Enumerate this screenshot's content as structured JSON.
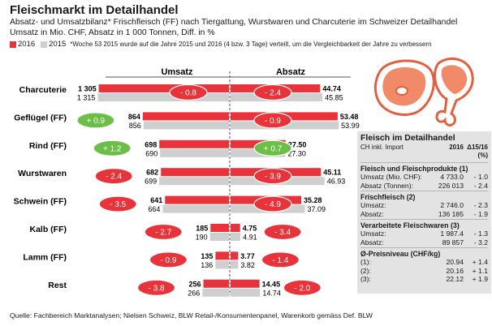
{
  "header": {
    "title": "Fleischmarkt im Detailhandel",
    "subtitle1": "Absatz- und Umsatzbilanz* Frischfleisch (FF) nach Tiergattung, Wurstwaren und Charcuterie im Schweizer Detailhandel",
    "subtitle2": "Umsatz in Mio. CHF, Absatz in 1 000 Tonnen, Diff. in %"
  },
  "legend": {
    "label_2016": "2016",
    "label_2015": "2015",
    "note": "*Woche 53 2015 wurde auf die Jahre 2015 und 2016 (4 bzw. 3 Tage) verteilt, um die Vergleichbarkeit der Jahre zu verbessern",
    "color_2016": "#e8333a",
    "color_2015": "#cfcfcf",
    "color_negative": "#e8333a",
    "color_positive": "#6bbf47"
  },
  "chart_data": {
    "type": "bar",
    "layout": "butterfly",
    "left_header": "Umsatz",
    "right_header": "Absatz",
    "categories": [
      "Charcuterie",
      "Geflügel (FF)",
      "Rind (FF)",
      "Wurstwaren",
      "Schwein (FF)",
      "Kalb (FF)",
      "Lamm (FF)",
      "Rest"
    ],
    "umsatz": {
      "2016": [
        1305,
        864,
        698,
        682,
        641,
        185,
        135,
        256
      ],
      "2015": [
        1315,
        856,
        690,
        699,
        664,
        190,
        136,
        266
      ],
      "labels_2016": [
        "1 305",
        "864",
        "698",
        "682",
        "641",
        "185",
        "135",
        "256"
      ],
      "labels_2015": [
        "1 315",
        "856",
        "690",
        "699",
        "664",
        "190",
        "136",
        "266"
      ],
      "diff": [
        "- 0.8",
        "+ 0.9",
        "+ 1.2",
        "- 2.4",
        "- 3.5",
        "- 2.7",
        "- 0.9",
        "- 3.8"
      ],
      "diff_values": [
        -0.8,
        0.9,
        1.2,
        -2.4,
        -3.5,
        -2.7,
        -0.9,
        -3.8
      ]
    },
    "absatz": {
      "2016": [
        44.74,
        53.48,
        27.5,
        45.11,
        35.28,
        4.75,
        3.77,
        14.45
      ],
      "2015": [
        45.85,
        53.99,
        27.3,
        46.93,
        37.09,
        4.91,
        3.82,
        14.74
      ],
      "labels_2016": [
        "44.74",
        "53.48",
        "27.50",
        "45.11",
        "35.28",
        "4.75",
        "3.77",
        "14.45"
      ],
      "labels_2015": [
        "45.85",
        "53.99",
        "27.30",
        "46.93",
        "37.09",
        "4.91",
        "3.82",
        "14.74"
      ],
      "diff": [
        "- 2.4",
        "- 0.9",
        "+ 0.7",
        "- 3.9",
        "- 4.9",
        "- 3.4",
        "- 1.4",
        "- 2.0"
      ],
      "diff_values": [
        -2.4,
        -0.9,
        0.7,
        -3.9,
        -4.9,
        -3.4,
        -1.4,
        -2.0
      ]
    }
  },
  "infotable": {
    "title": "Fleisch im Detailhandel",
    "col1": "CH inkl. Import",
    "col2": "2016",
    "col3": "Δ15/16 (%)",
    "sections": [
      {
        "heading": "Fleisch und Fleischprodukte (1)",
        "rows": [
          {
            "label": "Umsatz (Mio. CHF):",
            "value": "4 733.0",
            "delta": "- 1.0"
          },
          {
            "label": "Absatz (Tonnen):",
            "value": "226 013",
            "delta": "- 2.4"
          }
        ]
      },
      {
        "heading": "Frischfleisch (2)",
        "rows": [
          {
            "label": "Umsatz:",
            "value": "2 746.0",
            "delta": "- 2.3"
          },
          {
            "label": "Absatz:",
            "value": "136 185",
            "delta": "- 1.9"
          }
        ]
      },
      {
        "heading": "Verarbeitete Fleischwaren (3)",
        "rows": [
          {
            "label": "Umsatz:",
            "value": "1 987.4",
            "delta": "- 1.3"
          },
          {
            "label": "Absatz:",
            "value": "89 857",
            "delta": "- 3.2"
          }
        ]
      },
      {
        "heading": "Ø-Preisniveau (CHF/kg)",
        "rows": [
          {
            "label": "(1):",
            "value": "20.94",
            "delta": "+ 1.4"
          },
          {
            "label": "(2):",
            "value": "20.16",
            "delta": "+ 1.1"
          },
          {
            "label": "(3):",
            "value": "22.12",
            "delta": "+ 1.9"
          }
        ]
      }
    ]
  },
  "source": "Quelle: Fachbereich Marktanalysen; Nielsen Schweiz, BLW Retail-/Konsumentenpanel, Warenkorb gemäss Def. BLW",
  "icons": [
    "steak-icon",
    "chicken-leg-icon"
  ]
}
